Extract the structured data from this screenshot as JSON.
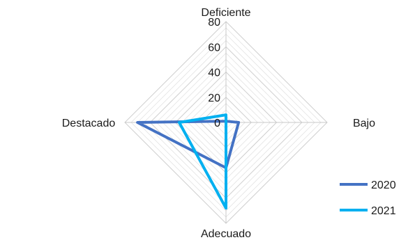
{
  "chart_data": {
    "type": "radar",
    "categories": [
      "Deficiente",
      "Bajo",
      "Adecuado",
      "Destacado"
    ],
    "series": [
      {
        "name": "2020",
        "values": [
          1,
          10,
          36,
          70
        ],
        "color": "#4472C4"
      },
      {
        "name": "2021",
        "values": [
          6,
          0,
          68,
          37
        ],
        "color": "#00B0F0"
      }
    ],
    "rlim": [
      0,
      80
    ],
    "ticks": [
      0,
      20,
      40,
      60,
      80
    ],
    "tick_labels": [
      "0",
      "20",
      "40",
      "60",
      "80"
    ],
    "minor_gridlines": true,
    "legend_position": "right"
  }
}
